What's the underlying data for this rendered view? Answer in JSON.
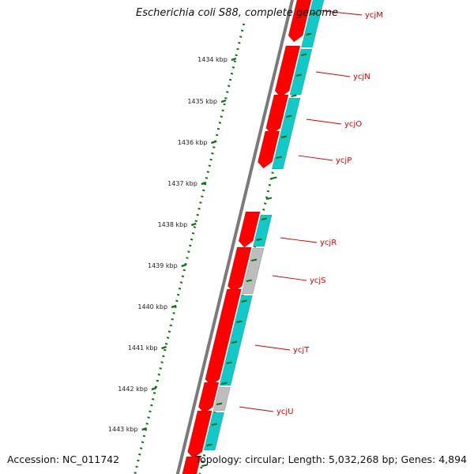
{
  "title": "Escherichia coli S88, complete genome",
  "footer": {
    "accession": "Accession: NC_011742",
    "summary": "Topology: circular; Length: 5,032,268 bp; Genes: 4,894"
  },
  "colors": {
    "backbone": "#7a7a7a",
    "forward_gene": "#ff0000",
    "reverse_gene": "#14c8c8",
    "hypothetical_gene": "#bdbdbd",
    "tick": "#157015",
    "label": "#d40000"
  },
  "kbp_ticks": [
    "1434 kbp",
    "1435 kbp",
    "1436 kbp",
    "1437 kbp",
    "1438 kbp",
    "1439 kbp",
    "1440 kbp",
    "1441 kbp",
    "1442 kbp",
    "1443 kbp"
  ],
  "gene_labels": [
    "ycjM",
    "ycjN",
    "ycjO",
    "ycjP",
    "ycjR",
    "ycjS",
    "ycjT",
    "ycjU"
  ]
}
